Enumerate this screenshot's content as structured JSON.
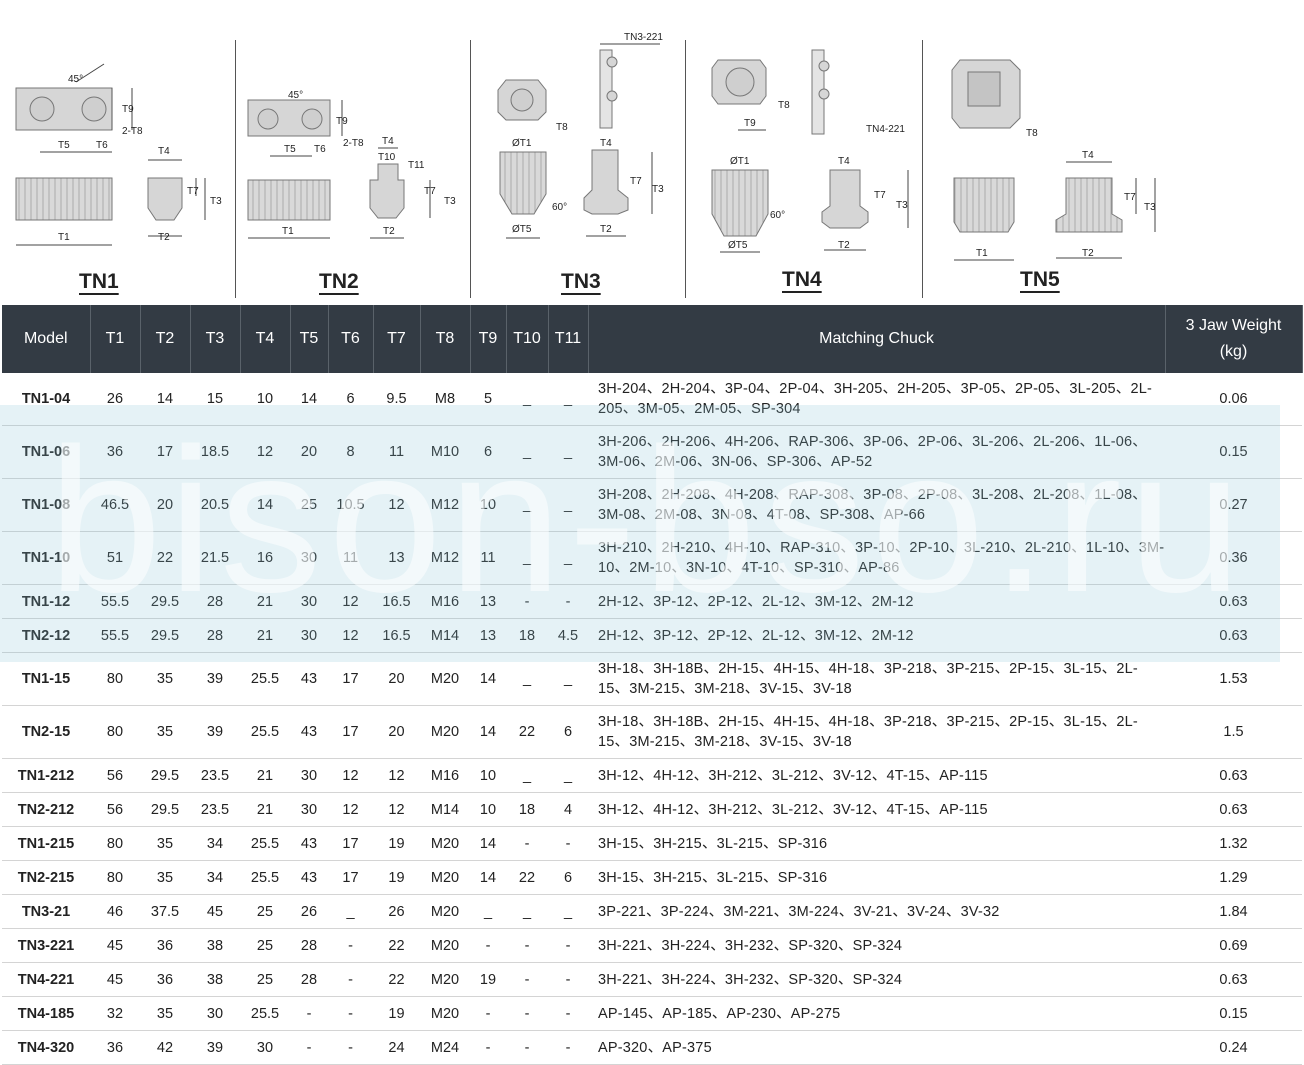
{
  "diagrams": [
    {
      "label": "TN1",
      "dims": [
        "45°",
        "T9",
        "2-T8",
        "T5",
        "T6",
        "T4",
        "T7",
        "T3",
        "T1",
        "T2"
      ]
    },
    {
      "label": "TN2",
      "dims": [
        "45°",
        "T9",
        "2-T8",
        "T5",
        "T6",
        "T4",
        "T10",
        "T11",
        "T7",
        "T3",
        "T1",
        "T2"
      ]
    },
    {
      "label": "TN3",
      "dims": [
        "TN3-221",
        "T8",
        "ØT1",
        "T4",
        "T7",
        "T3",
        "60°",
        "ØT5",
        "T2"
      ]
    },
    {
      "label": "TN4",
      "dims": [
        "T8",
        "T9",
        "TN4-221",
        "ØT1",
        "T4",
        "T7",
        "T3",
        "60°",
        "ØT5",
        "T2"
      ]
    },
    {
      "label": "TN5",
      "dims": [
        "T8",
        "T4",
        "T7",
        "T3",
        "T1",
        "T2"
      ]
    }
  ],
  "table": {
    "headers": [
      "Model",
      "T1",
      "T2",
      "T3",
      "T4",
      "T5",
      "T6",
      "T7",
      "T8",
      "T9",
      "T10",
      "T11",
      "Matching Chuck",
      "3 Jaw Weight (kg)"
    ],
    "rows": [
      [
        "TN1-04",
        "26",
        "14",
        "15",
        "10",
        "14",
        "6",
        "9.5",
        "M8",
        "5",
        "_",
        "_",
        "3H-204、2H-204、3P-04、2P-04、3H-205、2H-205、3P-05、2P-05、3L-205、2L-205、3M-05、2M-05、SP-304",
        "0.06"
      ],
      [
        "TN1-06",
        "36",
        "17",
        "18.5",
        "12",
        "20",
        "8",
        "11",
        "M10",
        "6",
        "_",
        "_",
        "3H-206、2H-206、4H-206、RAP-306、3P-06、2P-06、3L-206、2L-206、1L-06、3M-06、2M-06、3N-06、SP-306、AP-52",
        "0.15"
      ],
      [
        "TN1-08",
        "46.5",
        "20",
        "20.5",
        "14",
        "25",
        "10.5",
        "12",
        "M12",
        "10",
        "_",
        "_",
        "3H-208、2H-208、4H-208、RAP-308、3P-08、2P-08、3L-208、2L-208、1L-08、3M-08、2M-08、3N-08、4T-08、SP-308、AP-66",
        "0.27"
      ],
      [
        "TN1-10",
        "51",
        "22",
        "21.5",
        "16",
        "30",
        "11",
        "13",
        "M12",
        "11",
        "_",
        "_",
        "3H-210、2H-210、4H-10、RAP-310、3P-10、2P-10、3L-210、2L-210、1L-10、3M-10、2M-10、3N-10、4T-10、SP-310、AP-86",
        "0.36"
      ],
      [
        "TN1-12",
        "55.5",
        "29.5",
        "28",
        "21",
        "30",
        "12",
        "16.5",
        "M16",
        "13",
        "-",
        "-",
        "2H-12、3P-12、2P-12、2L-12、3M-12、2M-12",
        "0.63"
      ],
      [
        "TN2-12",
        "55.5",
        "29.5",
        "28",
        "21",
        "30",
        "12",
        "16.5",
        "M14",
        "13",
        "18",
        "4.5",
        "2H-12、3P-12、2P-12、2L-12、3M-12、2M-12",
        "0.63"
      ],
      [
        "TN1-15",
        "80",
        "35",
        "39",
        "25.5",
        "43",
        "17",
        "20",
        "M20",
        "14",
        "_",
        "_",
        "3H-18、3H-18B、2H-15、4H-15、4H-18、3P-218、3P-215、2P-15、3L-15、2L-15、3M-215、3M-218、3V-15、3V-18",
        "1.53"
      ],
      [
        "TN2-15",
        "80",
        "35",
        "39",
        "25.5",
        "43",
        "17",
        "20",
        "M20",
        "14",
        "22",
        "6",
        "3H-18、3H-18B、2H-15、4H-15、4H-18、3P-218、3P-215、2P-15、3L-15、2L-15、3M-215、3M-218、3V-15、3V-18",
        "1.5"
      ],
      [
        "TN1-212",
        "56",
        "29.5",
        "23.5",
        "21",
        "30",
        "12",
        "12",
        "M16",
        "10",
        "_",
        "_",
        "3H-12、4H-12、3H-212、3L-212、3V-12、4T-15、AP-115",
        "0.63"
      ],
      [
        "TN2-212",
        "56",
        "29.5",
        "23.5",
        "21",
        "30",
        "12",
        "12",
        "M14",
        "10",
        "18",
        "4",
        "3H-12、4H-12、3H-212、3L-212、3V-12、4T-15、AP-115",
        "0.63"
      ],
      [
        "TN1-215",
        "80",
        "35",
        "34",
        "25.5",
        "43",
        "17",
        "19",
        "M20",
        "14",
        "-",
        "-",
        "3H-15、3H-215、3L-215、SP-316",
        "1.32"
      ],
      [
        "TN2-215",
        "80",
        "35",
        "34",
        "25.5",
        "43",
        "17",
        "19",
        "M20",
        "14",
        "22",
        "6",
        "3H-15、3H-215、3L-215、SP-316",
        "1.29"
      ],
      [
        "TN3-21",
        "46",
        "37.5",
        "45",
        "25",
        "26",
        "_",
        "26",
        "M20",
        "_",
        "_",
        "_",
        "3P-221、3P-224、3M-221、3M-224、3V-21、3V-24、3V-32",
        "1.84"
      ],
      [
        "TN3-221",
        "45",
        "36",
        "38",
        "25",
        "28",
        "-",
        "22",
        "M20",
        "-",
        "-",
        "-",
        "3H-221、3H-224、3H-232、SP-320、SP-324",
        "0.69"
      ],
      [
        "TN4-221",
        "45",
        "36",
        "38",
        "25",
        "28",
        "-",
        "22",
        "M20",
        "19",
        "-",
        "-",
        "3H-221、3H-224、3H-232、SP-320、SP-324",
        "0.63"
      ],
      [
        "TN4-185",
        "32",
        "35",
        "30",
        "25.5",
        "-",
        "-",
        "19",
        "M20",
        "-",
        "-",
        "-",
        "AP-145、AP-185、AP-230、AP-275",
        "0.15"
      ],
      [
        "TN4-320",
        "36",
        "42",
        "39",
        "30",
        "-",
        "-",
        "24",
        "M24",
        "-",
        "-",
        "-",
        "AP-320、AP-375",
        "0.24"
      ]
    ]
  },
  "watermark": "bison-bso.ru",
  "colors": {
    "header_bg": "#333b44",
    "header_text": "#ffffff",
    "row_border": "#d4d4d4",
    "watermark_band": "#8ac6d6",
    "part_fill": "#d6d6d6"
  }
}
